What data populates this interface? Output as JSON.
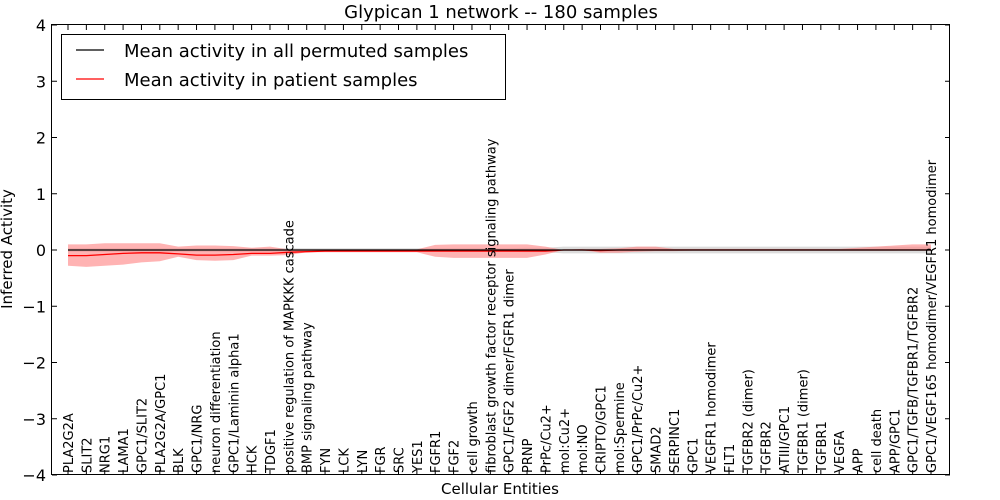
{
  "chart_data": {
    "type": "line",
    "title": "Glypican 1 network -- 180 samples",
    "xlabel": "Cellular Entities",
    "ylabel": "Inferred Activity",
    "ylim": [
      -4,
      4
    ],
    "yticks": [
      4,
      3,
      2,
      1,
      0,
      -1,
      -2,
      -3,
      -4
    ],
    "ytick_labels": [
      "4",
      "3",
      "2",
      "1",
      "0",
      "−1",
      "−2",
      "−3",
      "−4"
    ],
    "grid": false,
    "legend_position": "top-left",
    "categories": [
      "PLA2G2A",
      "SLIT2",
      "NRG1",
      "LAMA1",
      "GPC1/SLIT2",
      "PLA2G2A/GPC1",
      "BLK",
      "GPC1/NRG",
      "neuron differentiation",
      "GPC1/Laminin alpha1",
      "HCK",
      "TDGF1",
      "positive regulation of MAPKKK cascade",
      "BMP signaling pathway",
      "FYN",
      "LCK",
      "LYN",
      "FGR",
      "SRC",
      "YES1",
      "FGFR1",
      "FGF2",
      "cell growth",
      "fibroblast growth factor receptor signaling pathway",
      "GPC1/FGF2 dimer/FGFR1 dimer",
      "PRNP",
      "PrPc/Cu2+",
      "mol:Cu2+",
      "mol:NO",
      "CRIPTO/GPC1",
      "mol:Spermine",
      "GPC1/PrPc/Cu2+",
      "SMAD2",
      "SERPINC1",
      "GPC1",
      "VEGFR1 homodimer",
      "FLT1",
      "TGFBR2 (dimer)",
      "TGFBR2",
      "ATIII/GPC1",
      "TGFBR1 (dimer)",
      "TGFBR1",
      "VEGFA",
      "APP",
      "cell death",
      "APP/GPC1",
      "GPC1/TGFB/TGFBR1/TGFBR2",
      "GPC1/VEGF165 homodimer/VEGFR1 homodimer"
    ],
    "series": [
      {
        "name": "Mean activity in all permuted samples",
        "color": "#000000",
        "values": [
          0.0,
          0.0,
          0.0,
          0.0,
          0.0,
          0.0,
          0.0,
          0.0,
          0.0,
          0.0,
          0.0,
          0.0,
          0.0,
          0.0,
          0.0,
          0.0,
          0.0,
          0.0,
          0.0,
          0.0,
          0.0,
          0.0,
          0.0,
          0.0,
          0.0,
          0.0,
          0.0,
          0.0,
          0.0,
          0.0,
          0.0,
          0.0,
          0.0,
          0.0,
          0.0,
          0.0,
          0.0,
          0.0,
          0.0,
          0.0,
          0.0,
          0.0,
          0.0,
          0.0,
          0.0,
          0.0,
          0.0,
          0.0
        ],
        "band_lower": [
          -0.03,
          -0.03,
          -0.03,
          -0.03,
          -0.03,
          -0.03,
          -0.03,
          -0.03,
          -0.03,
          -0.03,
          -0.03,
          -0.03,
          -0.03,
          -0.03,
          -0.03,
          -0.03,
          -0.03,
          -0.03,
          -0.03,
          -0.03,
          -0.03,
          -0.03,
          -0.03,
          -0.03,
          -0.03,
          -0.04,
          -0.04,
          -0.06,
          -0.06,
          -0.06,
          -0.06,
          -0.06,
          -0.06,
          -0.06,
          -0.06,
          -0.06,
          -0.06,
          -0.06,
          -0.06,
          -0.06,
          -0.06,
          -0.06,
          -0.06,
          -0.06,
          -0.06,
          -0.06,
          -0.06,
          -0.06
        ],
        "band_upper": [
          0.03,
          0.03,
          0.03,
          0.03,
          0.03,
          0.03,
          0.03,
          0.03,
          0.03,
          0.03,
          0.03,
          0.03,
          0.03,
          0.03,
          0.03,
          0.03,
          0.03,
          0.03,
          0.03,
          0.03,
          0.03,
          0.03,
          0.03,
          0.03,
          0.03,
          0.04,
          0.04,
          0.06,
          0.06,
          0.06,
          0.06,
          0.06,
          0.06,
          0.06,
          0.06,
          0.06,
          0.06,
          0.06,
          0.06,
          0.06,
          0.06,
          0.06,
          0.06,
          0.06,
          0.06,
          0.06,
          0.06,
          0.06
        ]
      },
      {
        "name": "Mean activity in patient samples",
        "color": "#ff0000",
        "band_color": "#ff8080",
        "values": [
          -0.1,
          -0.1,
          -0.08,
          -0.06,
          -0.05,
          -0.05,
          -0.07,
          -0.09,
          -0.09,
          -0.08,
          -0.06,
          -0.06,
          -0.04,
          -0.03,
          -0.02,
          -0.02,
          -0.02,
          -0.02,
          -0.02,
          -0.02,
          -0.02,
          -0.02,
          -0.02,
          -0.02,
          -0.02,
          -0.02,
          -0.02,
          0.0,
          0.0,
          -0.01,
          0.0,
          0.0,
          0.0,
          0.0,
          0.0,
          0.0,
          0.0,
          0.0,
          0.0,
          0.0,
          0.0,
          0.0,
          0.0,
          0.0,
          0.0,
          0.0,
          0.0,
          0.0
        ],
        "band_lower": [
          -0.28,
          -0.3,
          -0.28,
          -0.26,
          -0.22,
          -0.2,
          -0.12,
          -0.18,
          -0.19,
          -0.18,
          -0.1,
          -0.1,
          -0.09,
          -0.04,
          -0.04,
          -0.04,
          -0.04,
          -0.04,
          -0.04,
          -0.04,
          -0.12,
          -0.14,
          -0.14,
          -0.14,
          -0.14,
          -0.14,
          -0.08,
          0.0,
          0.0,
          -0.05,
          -0.05,
          -0.03,
          -0.02,
          -0.02,
          -0.01,
          -0.01,
          -0.01,
          -0.01,
          -0.01,
          -0.01,
          -0.01,
          -0.01,
          -0.01,
          -0.01,
          -0.01,
          -0.01,
          0.0,
          0.0
        ],
        "band_upper": [
          0.1,
          0.1,
          0.12,
          0.12,
          0.12,
          0.12,
          0.06,
          0.08,
          0.08,
          0.07,
          0.04,
          0.06,
          0.01,
          0.01,
          0.01,
          0.01,
          0.01,
          0.01,
          0.01,
          0.01,
          0.09,
          0.1,
          0.1,
          0.1,
          0.1,
          0.1,
          0.06,
          0.0,
          0.02,
          0.02,
          0.03,
          0.06,
          0.06,
          0.02,
          0.02,
          0.02,
          0.02,
          0.02,
          0.02,
          0.02,
          0.02,
          0.02,
          0.02,
          0.04,
          0.06,
          0.08,
          0.1,
          0.1
        ]
      }
    ]
  }
}
